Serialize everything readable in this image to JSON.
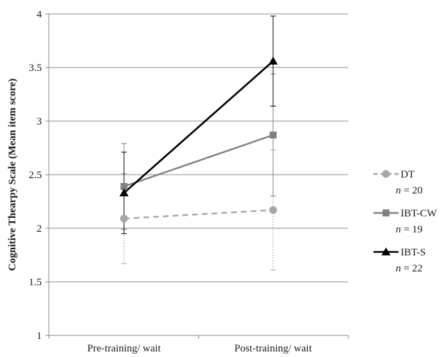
{
  "chart_data": {
    "type": "line",
    "title": "",
    "xlabel": "",
    "ylabel": "Cognitive Thearpy Scale (Mean item score)",
    "ylim": [
      1,
      4
    ],
    "yticks": [
      1,
      1.5,
      2,
      2.5,
      3,
      3.5,
      4
    ],
    "ytick_labels": [
      "1",
      "1.5",
      "2",
      "2.5",
      "3",
      "3.5",
      "4"
    ],
    "categories": [
      "Pre-training/ wait",
      "Post-training/ wait"
    ],
    "grid": true,
    "legend_position": "right",
    "series": [
      {
        "name": "DT",
        "n_label": "= 20",
        "n_var": "n",
        "color": "#a6a6a6",
        "line_style": "dashed",
        "marker": "circle",
        "values": [
          2.09,
          2.17
        ],
        "error_low": [
          1.67,
          1.61
        ],
        "error_high": [
          2.51,
          2.73
        ]
      },
      {
        "name": "IBT-CW",
        "n_label": "= 19",
        "n_var": "n",
        "color": "#808080",
        "line_style": "solid",
        "marker": "square",
        "values": [
          2.39,
          2.87
        ],
        "error_low": [
          1.99,
          2.3
        ],
        "error_high": [
          2.79,
          3.44
        ]
      },
      {
        "name": "IBT-S",
        "n_label": "= 22",
        "n_var": "n",
        "color": "#000000",
        "line_style": "solid",
        "marker": "triangle",
        "values": [
          2.33,
          3.56
        ],
        "error_low": [
          1.95,
          3.14
        ],
        "error_high": [
          2.71,
          3.98
        ]
      }
    ]
  }
}
